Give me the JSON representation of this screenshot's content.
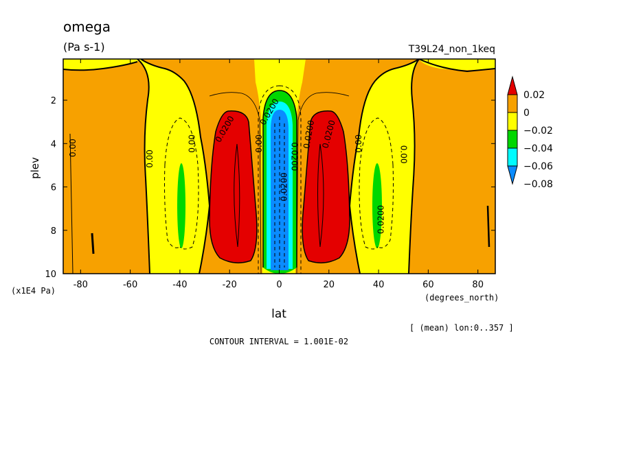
{
  "title": "omega",
  "units": "(Pa s-1)",
  "run_label": "T39L24_non_1keq",
  "axis": {
    "ylabel": "plev",
    "yunit": "(x1E4 Pa)",
    "xlabel": "lat",
    "xunit": "(degrees_north)"
  },
  "mean_note": "[ (mean) lon:0..357 ]",
  "contour_interval_text": "CONTOUR INTERVAL = 1.001E-02",
  "contour_labels": [
    "0.00",
    "0.00",
    "0.00",
    "0.0200",
    "0.00",
    "0.0200",
    "0.00",
    "0.00",
    "0.0200",
    "0.0200",
    "0.0200",
    "0.0200",
    "0.0200"
  ],
  "colors": {
    "orange": "#f7a100",
    "yellow": "#ffff00",
    "green": "#00d700",
    "cyan": "#00fcff",
    "blue": "#0a8cff",
    "red": "#e40000",
    "black": "#000000"
  },
  "chart_data": {
    "type": "heatmap",
    "variable": "omega",
    "x": {
      "label": "lat",
      "unit": "(degrees_north)",
      "range": [
        -87,
        87
      ],
      "ticks": [
        -80,
        -60,
        -40,
        -20,
        0,
        20,
        40,
        60,
        80
      ]
    },
    "y": {
      "label": "plev",
      "unit": "(x1E4 Pa)",
      "range": [
        10,
        0.1
      ],
      "ticks": [
        2,
        4,
        6,
        8,
        10
      ]
    },
    "contour_interval": 0.01001,
    "colorbar": {
      "labels": [
        "0.02",
        "0",
        "−0.02",
        "−0.04",
        "−0.06",
        "−0.08"
      ],
      "bins": [
        {
          "range": [
            0.02,
            null
          ],
          "color": "#e40000"
        },
        {
          "range": [
            0,
            0.02
          ],
          "color": "#f7a100"
        },
        {
          "range": [
            -0.02,
            0
          ],
          "color": "#ffff00"
        },
        {
          "range": [
            -0.04,
            -0.02
          ],
          "color": "#00d700"
        },
        {
          "range": [
            -0.06,
            -0.04
          ],
          "color": "#00fcff"
        },
        {
          "range": [
            null,
            -0.06
          ],
          "color": "#0a8cff"
        }
      ]
    },
    "features": [
      {
        "name": "yellow-band-south",
        "lat": [
          -55,
          -30
        ],
        "plev": [
          0.3,
          10
        ],
        "level": "<0"
      },
      {
        "name": "yellow-band-north",
        "lat": [
          30,
          55
        ],
        "plev": [
          0.3,
          10
        ],
        "level": "<0"
      },
      {
        "name": "green-cell-south",
        "lat": [
          -42,
          -38
        ],
        "plev": [
          4.9,
          8.8
        ],
        "level": "<-0.02"
      },
      {
        "name": "green-cell-north",
        "lat": [
          38,
          42
        ],
        "plev": [
          4.9,
          8.8
        ],
        "level": "<-0.02"
      },
      {
        "name": "red-cell-south",
        "lat": [
          -24,
          -7
        ],
        "plev": [
          3.0,
          9.2
        ],
        "level": ">0.02"
      },
      {
        "name": "red-cell-north",
        "lat": [
          7,
          24
        ],
        "plev": [
          3.0,
          9.2
        ],
        "level": ">0.02"
      },
      {
        "name": "equatorial-updraft",
        "lat": [
          -4,
          4
        ],
        "plev": [
          1.7,
          10
        ],
        "level": "<-0.06"
      }
    ]
  }
}
